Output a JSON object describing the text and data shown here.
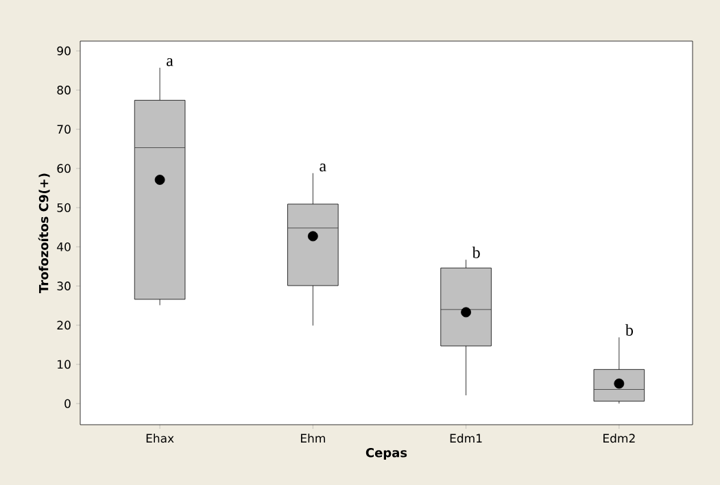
{
  "chart_data": {
    "type": "box",
    "xlabel": "Cepas",
    "ylabel": "Trofozoítos C9(+)",
    "categories": [
      "Ehax",
      "Ehm",
      "Edm1",
      "Edm2"
    ],
    "series": [
      {
        "color": "#c0c0c0",
        "boxes": [
          {
            "low": 25.1,
            "q1": 26.6,
            "median": 65.3,
            "q3": 77.4,
            "high": 85.7,
            "mean": 57.1
          },
          {
            "low": 19.9,
            "q1": 30.1,
            "median": 44.8,
            "q3": 50.9,
            "high": 58.8,
            "mean": 42.7
          },
          {
            "low": 2.1,
            "q1": 14.7,
            "median": 24.0,
            "q3": 34.6,
            "high": 36.7,
            "mean": 23.3
          },
          {
            "low": 0,
            "q1": 0.6,
            "median": 3.6,
            "q3": 8.7,
            "high": 16.9,
            "mean": 5.1
          }
        ]
      }
    ],
    "ylim": [
      -5.4,
      92.5
    ],
    "yticks": [
      0,
      10,
      20,
      30,
      40,
      50,
      60,
      70,
      80,
      90
    ],
    "grid": false,
    "marker": "circle",
    "annotations": [
      "a",
      "a",
      "b",
      "b"
    ]
  }
}
